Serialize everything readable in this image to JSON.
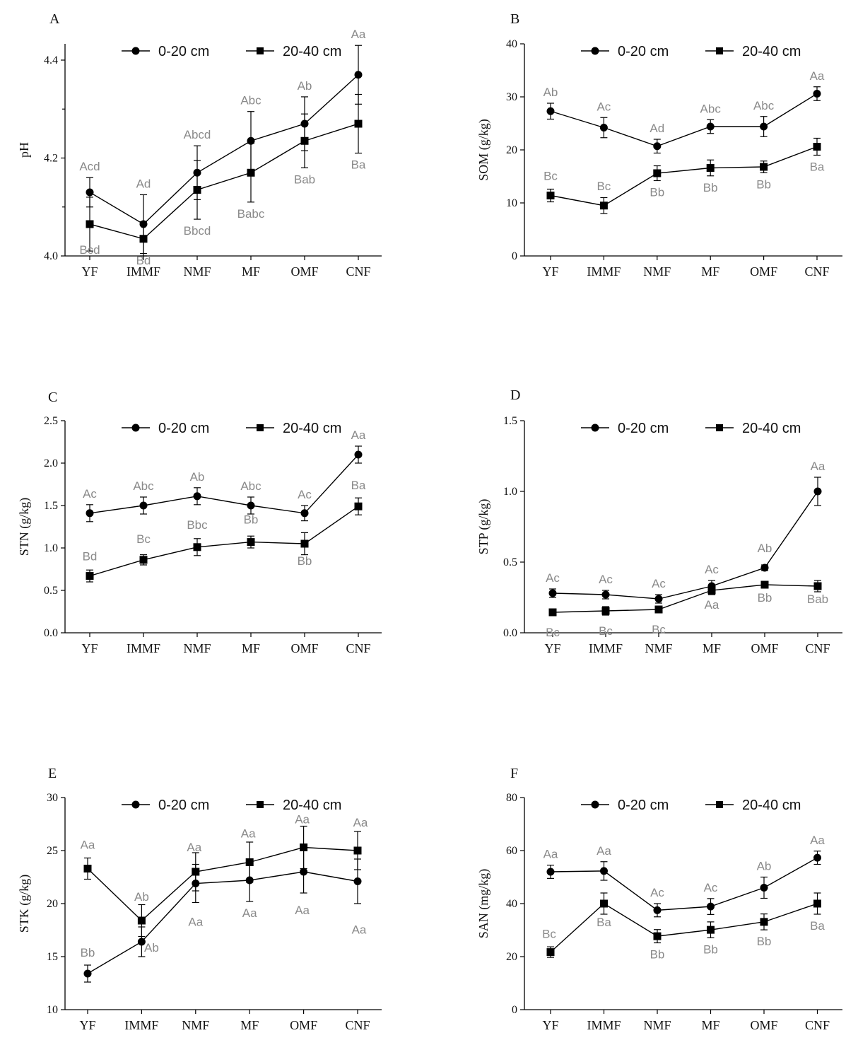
{
  "chart_data": [
    {
      "type": "line",
      "panel": "A",
      "ylabel": "pH",
      "ylim": [
        4.0,
        4.45
      ],
      "yticks": [
        4.0,
        4.2,
        4.4
      ],
      "ytick_labels": [
        "4.0",
        "4.2",
        "4.4"
      ],
      "categories": [
        "YF",
        "IMMF",
        "NMF",
        "MF",
        "OMF",
        "CNF"
      ],
      "series": [
        {
          "name": "0-20 cm",
          "marker": "circle",
          "values": [
            4.13,
            4.065,
            4.17,
            4.235,
            4.27,
            4.37
          ],
          "errors": [
            0.03,
            0.06,
            0.055,
            0.06,
            0.055,
            0.06
          ],
          "labels": [
            "Acd",
            "Ad",
            "Abcd",
            "Abc",
            "Ab",
            "Aa"
          ]
        },
        {
          "name": "20-40 cm",
          "marker": "square",
          "values": [
            4.065,
            4.035,
            4.135,
            4.17,
            4.235,
            4.27
          ],
          "errors": [
            0.055,
            0.035,
            0.06,
            0.06,
            0.055,
            0.06
          ],
          "labels": [
            "Bcd",
            "Bd",
            "Bbcd",
            "Babc",
            "Bab",
            "Ba"
          ]
        }
      ]
    },
    {
      "type": "line",
      "panel": "B",
      "ylabel": "SOM (g/kg)",
      "ylim": [
        0,
        40
      ],
      "yticks": [
        0,
        10,
        20,
        30,
        40
      ],
      "ytick_labels": [
        "0",
        "10",
        "20",
        "30",
        "40"
      ],
      "categories": [
        "YF",
        "IMMF",
        "NMF",
        "MF",
        "OMF",
        "CNF"
      ],
      "series": [
        {
          "name": "0-20 cm",
          "marker": "circle",
          "values": [
            27.3,
            24.2,
            20.7,
            24.4,
            24.4,
            30.6
          ],
          "errors": [
            1.5,
            1.9,
            1.3,
            1.3,
            1.9,
            1.3
          ],
          "labels": [
            "Ab",
            "Ac",
            "Ad",
            "Abc",
            "Abc",
            "Aa"
          ]
        },
        {
          "name": "20-40 cm",
          "marker": "square",
          "values": [
            11.4,
            9.5,
            15.6,
            16.6,
            16.8,
            20.6
          ],
          "errors": [
            1.2,
            1.5,
            1.4,
            1.5,
            1.1,
            1.6
          ],
          "labels": [
            "Bc",
            "Bc",
            "Bb",
            "Bb",
            "Bb",
            "Ba"
          ]
        }
      ]
    },
    {
      "type": "line",
      "panel": "C",
      "ylabel": "STN (g/kg)",
      "ylim": [
        0,
        2.5
      ],
      "yticks": [
        0,
        0.5,
        1.0,
        1.5,
        2.0,
        2.5
      ],
      "ytick_labels": [
        "0.0",
        "0.5",
        "1.0",
        "1.5",
        "2.0",
        "2.5"
      ],
      "categories": [
        "YF",
        "IMMF",
        "NMF",
        "MF",
        "OMF",
        "CNF"
      ],
      "series": [
        {
          "name": "0-20 cm",
          "marker": "circle",
          "values": [
            1.41,
            1.5,
            1.61,
            1.5,
            1.41,
            2.1
          ],
          "errors": [
            0.1,
            0.1,
            0.1,
            0.1,
            0.09,
            0.1
          ],
          "labels": [
            "Ac",
            "Abc",
            "Ab",
            "Abc",
            "Ac",
            "Aa"
          ]
        },
        {
          "name": "20-40 cm",
          "marker": "square",
          "values": [
            0.67,
            0.86,
            1.01,
            1.07,
            1.05,
            1.49
          ],
          "errors": [
            0.07,
            0.06,
            0.1,
            0.07,
            0.13,
            0.1
          ],
          "labels": [
            "Bd",
            "Bc",
            "Bbc",
            "Bb",
            "Bb",
            "Ba"
          ]
        }
      ]
    },
    {
      "type": "line",
      "panel": "D",
      "ylabel": "STP (g/kg)",
      "ylim": [
        0,
        1.5
      ],
      "yticks": [
        0,
        0.5,
        1.0,
        1.5
      ],
      "ytick_labels": [
        "0.0",
        "0.5",
        "1.0",
        "1.5"
      ],
      "categories": [
        "YF",
        "IMMF",
        "NMF",
        "MF",
        "OMF",
        "CNF"
      ],
      "series": [
        {
          "name": "0-20 cm",
          "marker": "circle",
          "values": [
            0.28,
            0.27,
            0.24,
            0.33,
            0.46,
            1.0
          ],
          "errors": [
            0.03,
            0.03,
            0.03,
            0.04,
            0.02,
            0.1
          ],
          "labels": [
            "Ac",
            "Ac",
            "Ac",
            "Ac",
            "Ab",
            "Aa"
          ]
        },
        {
          "name": "20-40 cm",
          "marker": "square",
          "values": [
            0.145,
            0.155,
            0.165,
            0.3,
            0.34,
            0.33
          ],
          "errors": [
            0.02,
            0.03,
            0.02,
            0.03,
            0.02,
            0.04
          ],
          "labels": [
            "Bc",
            "Bc",
            "Bc",
            "Aa",
            "Bb",
            "Bab"
          ]
        }
      ]
    },
    {
      "type": "line",
      "panel": "E",
      "ylabel": "STK (g/kg)",
      "ylim": [
        10,
        30
      ],
      "yticks": [
        10,
        15,
        20,
        25,
        30
      ],
      "ytick_labels": [
        "10",
        "15",
        "20",
        "25",
        "30"
      ],
      "categories": [
        "YF",
        "IMMF",
        "NMF",
        "MF",
        "OMF",
        "CNF"
      ],
      "series": [
        {
          "name": "0-20 cm",
          "marker": "circle",
          "values": [
            13.4,
            16.4,
            21.9,
            22.2,
            23.0,
            22.1
          ],
          "errors": [
            0.8,
            1.4,
            1.8,
            2.0,
            2.0,
            2.1
          ],
          "labels": [
            "Bb",
            "Ab",
            "Aa",
            "Aa",
            "Aa",
            "Aa"
          ]
        },
        {
          "name": "20-40 cm",
          "marker": "square",
          "values": [
            23.3,
            18.4,
            23.0,
            23.9,
            25.3,
            25.0
          ],
          "errors": [
            1.0,
            1.5,
            1.8,
            1.9,
            2.0,
            1.8
          ],
          "labels": [
            "Aa",
            "Ab",
            "Aa",
            "Aa",
            "Aa",
            "Aa"
          ]
        }
      ]
    },
    {
      "type": "line",
      "panel": "F",
      "ylabel": "SAN (mg/kg)",
      "ylim": [
        0,
        80
      ],
      "yticks": [
        0,
        20,
        40,
        60,
        80
      ],
      "ytick_labels": [
        "0",
        "20",
        "40",
        "60",
        "80"
      ],
      "categories": [
        "YF",
        "IMMF",
        "NMF",
        "MF",
        "OMF",
        "CNF"
      ],
      "series": [
        {
          "name": "0-20 cm",
          "marker": "circle",
          "values": [
            52.0,
            52.3,
            37.5,
            38.9,
            46.0,
            57.3
          ],
          "errors": [
            2.5,
            3.5,
            2.5,
            3.0,
            4.0,
            2.5
          ],
          "labels": [
            "Aa",
            "Aa",
            "Ac",
            "Ac",
            "Ab",
            "Aa"
          ]
        },
        {
          "name": "20-40 cm",
          "marker": "square",
          "values": [
            21.7,
            40.0,
            27.7,
            30.1,
            33.1,
            40.0
          ],
          "errors": [
            2.0,
            4.0,
            2.5,
            3.0,
            3.0,
            4.0
          ],
          "labels": [
            "Bc",
            "Ba",
            "Bb",
            "Bb",
            "Bb",
            "Ba"
          ]
        }
      ]
    }
  ]
}
